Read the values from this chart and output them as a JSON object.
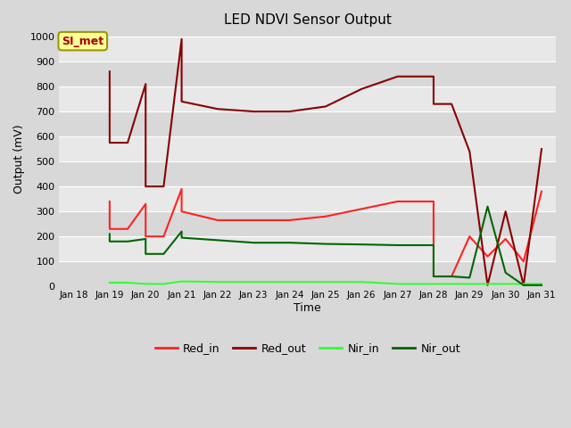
{
  "title": "LED NDVI Sensor Output",
  "xlabel": "Time",
  "ylabel": "Output (mV)",
  "ylim": [
    0,
    1020
  ],
  "background_color": "#d8d8d8",
  "plot_bg_color": "#d8d8d8",
  "grid_color": "#ffffff",
  "annotation_text": "SI_met",
  "annotation_bg": "#ffff99",
  "annotation_border": "#999900",
  "annotation_text_color": "#aa0000",
  "Red_in": {
    "x": [
      19,
      19,
      19.5,
      20,
      20,
      20.5,
      21,
      21,
      22,
      23,
      24,
      25,
      26,
      27,
      28,
      28,
      28.5,
      29,
      29.5,
      30,
      30.5,
      31
    ],
    "y": [
      340,
      230,
      230,
      330,
      200,
      200,
      390,
      300,
      265,
      265,
      265,
      280,
      310,
      340,
      340,
      40,
      40,
      200,
      120,
      190,
      100,
      380
    ],
    "color": "#ff2222",
    "linewidth": 1.5
  },
  "Red_out": {
    "x": [
      19,
      19,
      19.5,
      20,
      20,
      20.5,
      21,
      21,
      22,
      23,
      24,
      25,
      26,
      27,
      28,
      28,
      28.5,
      29,
      29.5,
      30,
      30.5,
      31
    ],
    "y": [
      860,
      575,
      575,
      810,
      400,
      400,
      990,
      740,
      710,
      700,
      700,
      720,
      790,
      840,
      840,
      730,
      730,
      540,
      5,
      300,
      5,
      550
    ],
    "color": "#880000",
    "linewidth": 1.5
  },
  "Nir_in": {
    "x": [
      19,
      19.5,
      20,
      20.5,
      21,
      22,
      23,
      24,
      25,
      26,
      27,
      28,
      28.5,
      29,
      29.5,
      30,
      30.5,
      31
    ],
    "y": [
      15,
      15,
      10,
      10,
      20,
      18,
      18,
      18,
      18,
      18,
      10,
      10,
      10,
      10,
      10,
      10,
      10,
      10
    ],
    "color": "#33ff33",
    "linewidth": 1.5
  },
  "Nir_out": {
    "x": [
      19,
      19,
      19.5,
      20,
      20,
      20.5,
      21,
      21,
      22,
      23,
      24,
      25,
      26,
      27,
      28,
      28,
      28.5,
      29,
      29.5,
      30,
      30.5,
      31
    ],
    "y": [
      210,
      180,
      180,
      190,
      130,
      130,
      220,
      195,
      185,
      175,
      175,
      170,
      168,
      165,
      165,
      40,
      40,
      35,
      320,
      55,
      5,
      5
    ],
    "color": "#006600",
    "linewidth": 1.5
  },
  "xtick_labels": [
    "Jan 18",
    "Jan 19",
    "Jan 20",
    "Jan 21",
    "Jan 22",
    "Jan 23",
    "Jan 24",
    "Jan 25",
    "Jan 26",
    "Jan 27",
    "Jan 28",
    "Jan 29",
    "Jan 30",
    "Jan 31"
  ],
  "xtick_x": [
    18,
    19,
    20,
    21,
    22,
    23,
    24,
    25,
    26,
    27,
    28,
    29,
    30,
    31
  ],
  "yticks": [
    0,
    100,
    200,
    300,
    400,
    500,
    600,
    700,
    800,
    900,
    1000
  ],
  "band_colors": [
    "#d8d8d8",
    "#e8e8e8"
  ],
  "xlim": [
    17.6,
    31.4
  ]
}
